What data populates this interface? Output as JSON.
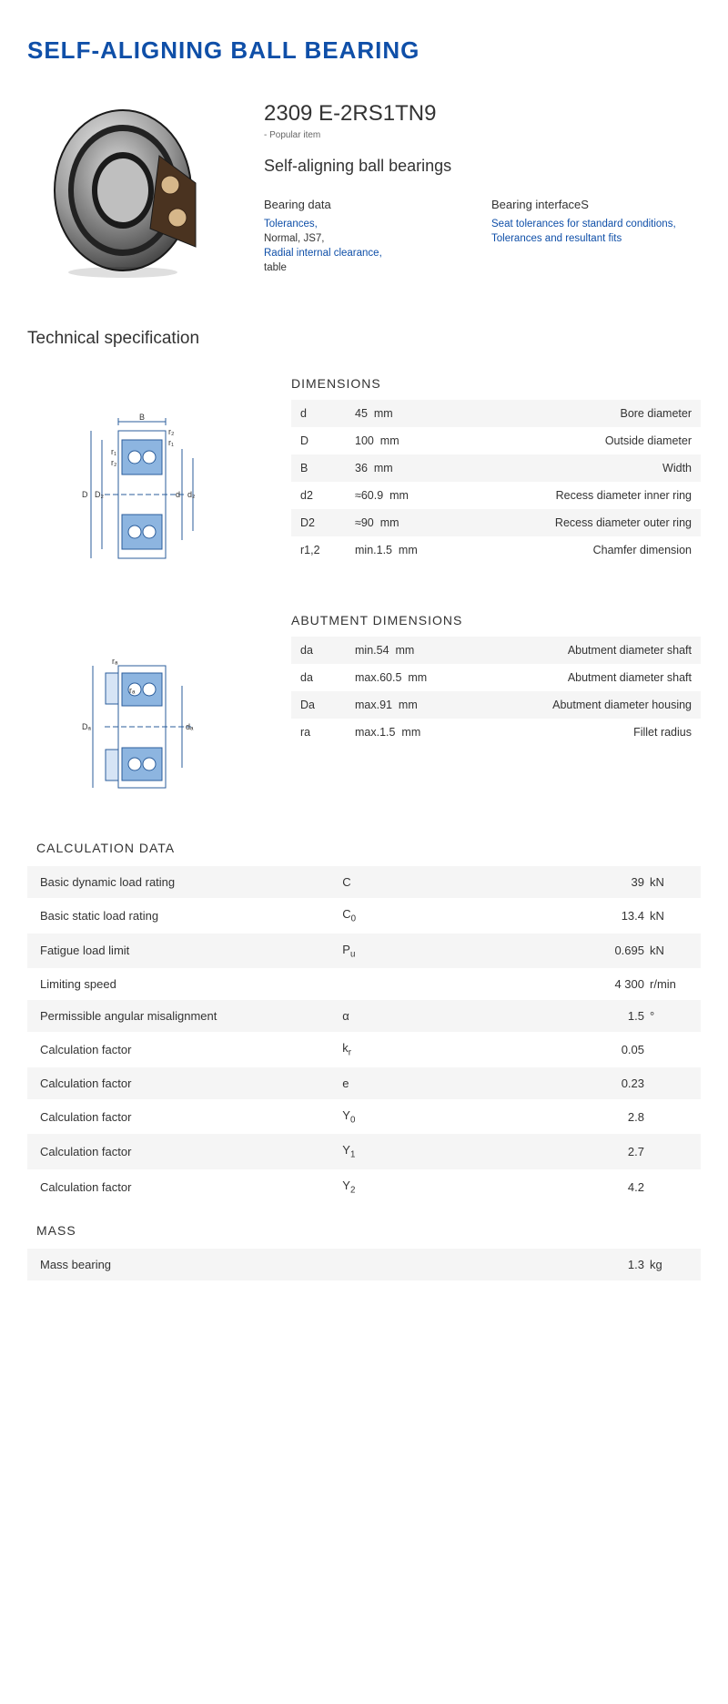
{
  "page": {
    "title": "SELF-ALIGNING BALL BEARING",
    "model": "2309 E-2RS1TN9",
    "popular_note": "- Popular item",
    "subtitle": "Self-aligning ball bearings",
    "tech_spec_heading": "Technical specification"
  },
  "meta": {
    "col1": {
      "heading": "Bearing data",
      "items": [
        {
          "text": "Tolerances,",
          "link": true
        },
        {
          "text": "Normal, JS7,",
          "link": false
        },
        {
          "text": "Radial internal clearance,",
          "link": true
        },
        {
          "text": "table",
          "link": false
        }
      ]
    },
    "col2": {
      "heading": "Bearing interfaceS",
      "items": [
        {
          "text": "Seat tolerances for standard conditions,",
          "link": true
        },
        {
          "text": "Tolerances and resultant fits",
          "link": true
        }
      ]
    }
  },
  "dimensions": {
    "heading": "DIMENSIONS",
    "rows": [
      {
        "sym": "d",
        "val": "45",
        "unit": "mm",
        "desc": "Bore diameter"
      },
      {
        "sym": "D",
        "val": "100",
        "unit": "mm",
        "desc": "Outside diameter"
      },
      {
        "sym": "B",
        "val": "36",
        "unit": "mm",
        "desc": "Width"
      },
      {
        "sym": "d2",
        "val": "≈60.9",
        "unit": "mm",
        "desc": "Recess diameter inner ring"
      },
      {
        "sym": "D2",
        "val": "≈90",
        "unit": "mm",
        "desc": "Recess diameter outer ring"
      },
      {
        "sym": "r1,2",
        "val": "min.1.5",
        "unit": "mm",
        "desc": "Chamfer dimension"
      }
    ]
  },
  "abutment": {
    "heading": "ABUTMENT DIMENSIONS",
    "rows": [
      {
        "sym": "da",
        "val": "min.54",
        "unit": "mm",
        "desc": "Abutment diameter shaft"
      },
      {
        "sym": "da",
        "val": "max.60.5",
        "unit": "mm",
        "desc": "Abutment diameter shaft"
      },
      {
        "sym": "Da",
        "val": "max.91",
        "unit": "mm",
        "desc": "Abutment diameter housing"
      },
      {
        "sym": "ra",
        "val": "max.1.5",
        "unit": "mm",
        "desc": "Fillet radius"
      }
    ]
  },
  "calc": {
    "heading": "CALCULATION DATA",
    "rows": [
      {
        "label": "Basic dynamic load rating",
        "sym": "C",
        "val": "39",
        "unit": "kN"
      },
      {
        "label": "Basic static load rating",
        "sym": "C<sub>0</sub>",
        "val": "13.4",
        "unit": "kN"
      },
      {
        "label": "Fatigue load limit",
        "sym": "P<sub>u</sub>",
        "val": "0.695",
        "unit": "kN"
      },
      {
        "label": "Limiting speed",
        "sym": "",
        "val": "4 300",
        "unit": "r/min"
      },
      {
        "label": "Permissible angular misalignment",
        "sym": "α",
        "val": "1.5",
        "unit": "°"
      },
      {
        "label": "Calculation factor",
        "sym": "k<sub>r</sub>",
        "val": "0.05",
        "unit": ""
      },
      {
        "label": "Calculation factor",
        "sym": "e",
        "val": "0.23",
        "unit": ""
      },
      {
        "label": "Calculation factor",
        "sym": "Y<sub>0</sub>",
        "val": "2.8",
        "unit": ""
      },
      {
        "label": "Calculation factor",
        "sym": "Y<sub>1</sub>",
        "val": "2.7",
        "unit": ""
      },
      {
        "label": "Calculation factor",
        "sym": "Y<sub>2</sub>",
        "val": "4.2",
        "unit": ""
      }
    ]
  },
  "mass": {
    "heading": "MASS",
    "rows": [
      {
        "label": "Mass bearing",
        "sym": "",
        "val": "1.3",
        "unit": "kg"
      }
    ]
  },
  "colors": {
    "brand": "#0f4fa8",
    "row_bg": "#f5f5f5",
    "diagram_blue": "#8db5e0",
    "diagram_line": "#2b5d9b"
  }
}
